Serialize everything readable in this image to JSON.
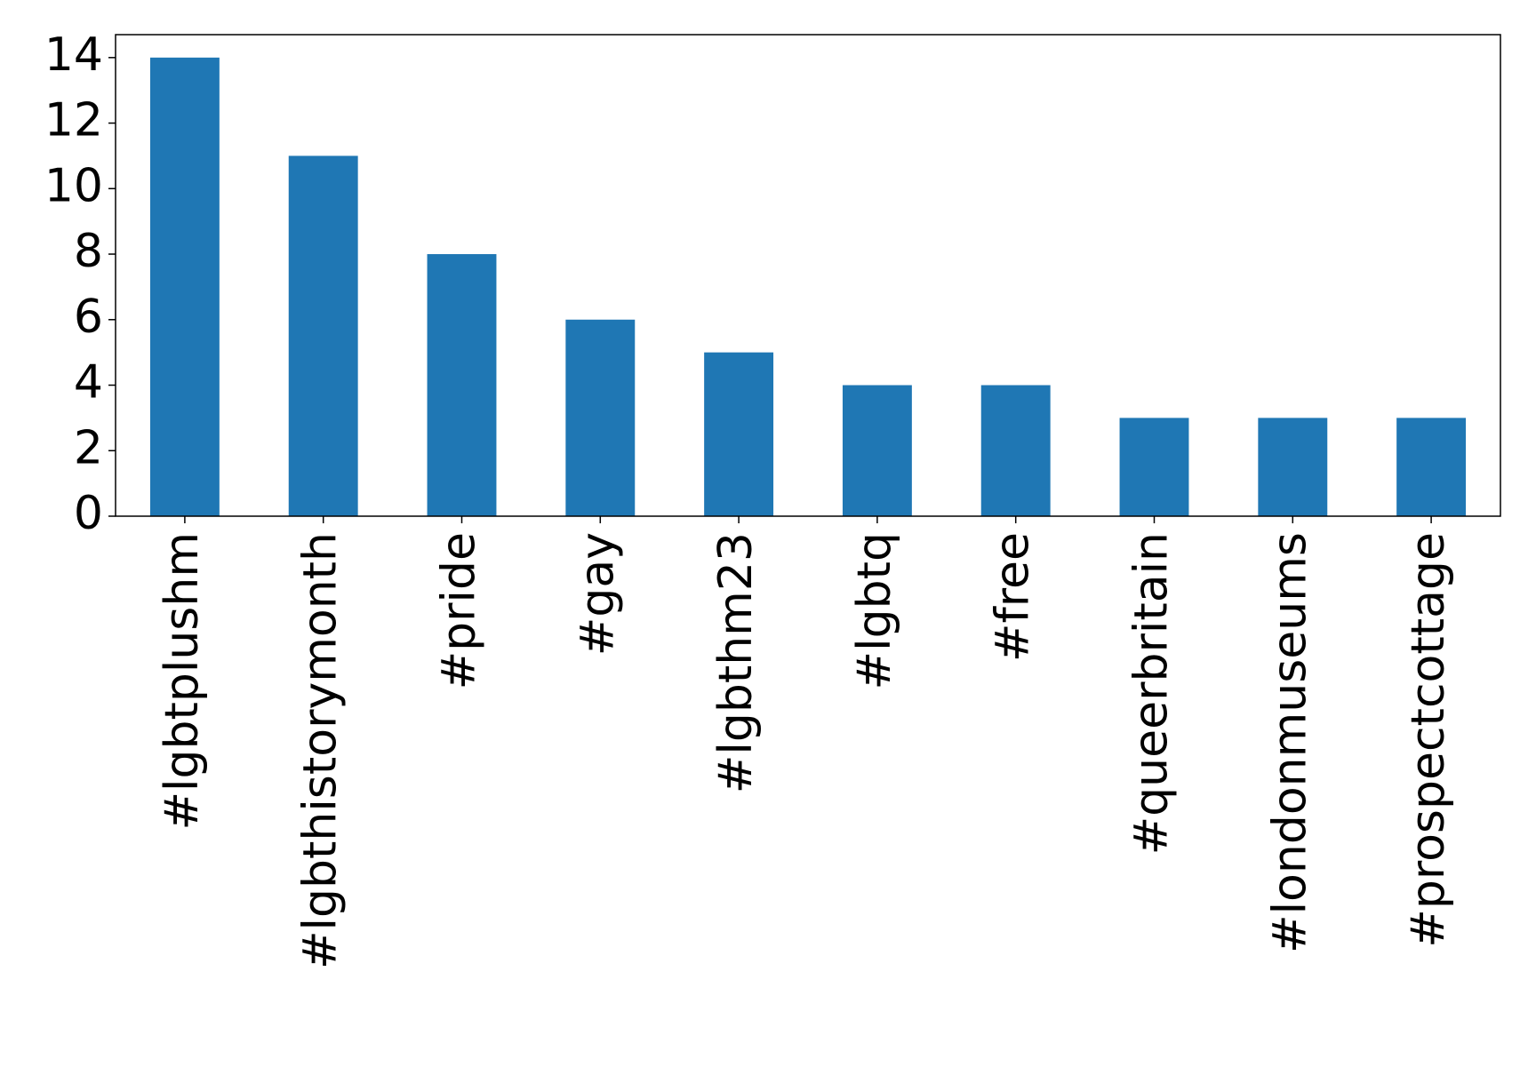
{
  "chart_data": {
    "type": "bar",
    "categories": [
      "#lgbtplushm",
      "#lgbthistorymonth",
      "#pride",
      "#gay",
      "#lgbthm23",
      "#lgbtq",
      "#free",
      "#queerbritain",
      "#londonmuseums",
      "#prospectcottage"
    ],
    "values": [
      14,
      11,
      8,
      6,
      5,
      4,
      4,
      3,
      3,
      3
    ],
    "title": "",
    "xlabel": "",
    "ylabel": "",
    "ylim": [
      0,
      14.7
    ],
    "yticks": [
      0,
      2,
      4,
      6,
      8,
      10,
      12,
      14
    ],
    "grid": false,
    "legend": "none",
    "bar_color": "#1f77b4"
  }
}
